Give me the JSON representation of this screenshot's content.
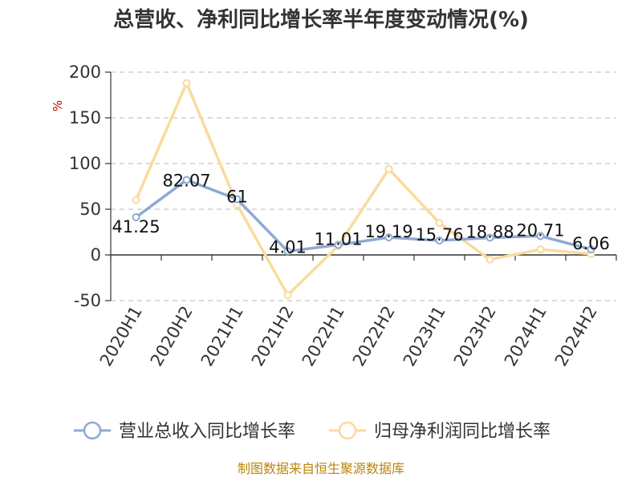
{
  "chart_data": {
    "type": "line",
    "title": "总营收、净利同比增长率半年度变动情况(%)",
    "ylabel": "%",
    "ylim": [
      -50,
      200
    ],
    "yticks": [
      -50,
      0,
      50,
      100,
      150,
      200
    ],
    "grid": true,
    "legend_position": "bottom",
    "categories": [
      "2020H1",
      "2020H2",
      "2021H1",
      "2021H2",
      "2022H1",
      "2022H2",
      "2023H1",
      "2023H2",
      "2024H1",
      "2024H2"
    ],
    "series": [
      {
        "name": "营业总收入同比增长率",
        "color": "#8fa9d6",
        "values": [
          41.25,
          82.07,
          61,
          4.01,
          11.01,
          19.19,
          15.76,
          18.88,
          20.71,
          6.06
        ],
        "labels": [
          "41.25",
          "82.07",
          "61",
          "4.01",
          "11.01",
          "19.19",
          "15.76",
          "18.88",
          "20.71",
          "6.06"
        ]
      },
      {
        "name": "归母净利润同比增长率",
        "color": "#fadb9c",
        "values": [
          60,
          188,
          55,
          -44,
          10,
          94,
          35,
          -5,
          6,
          1
        ]
      }
    ],
    "source": "制图数据来自恒生聚源数据库"
  }
}
